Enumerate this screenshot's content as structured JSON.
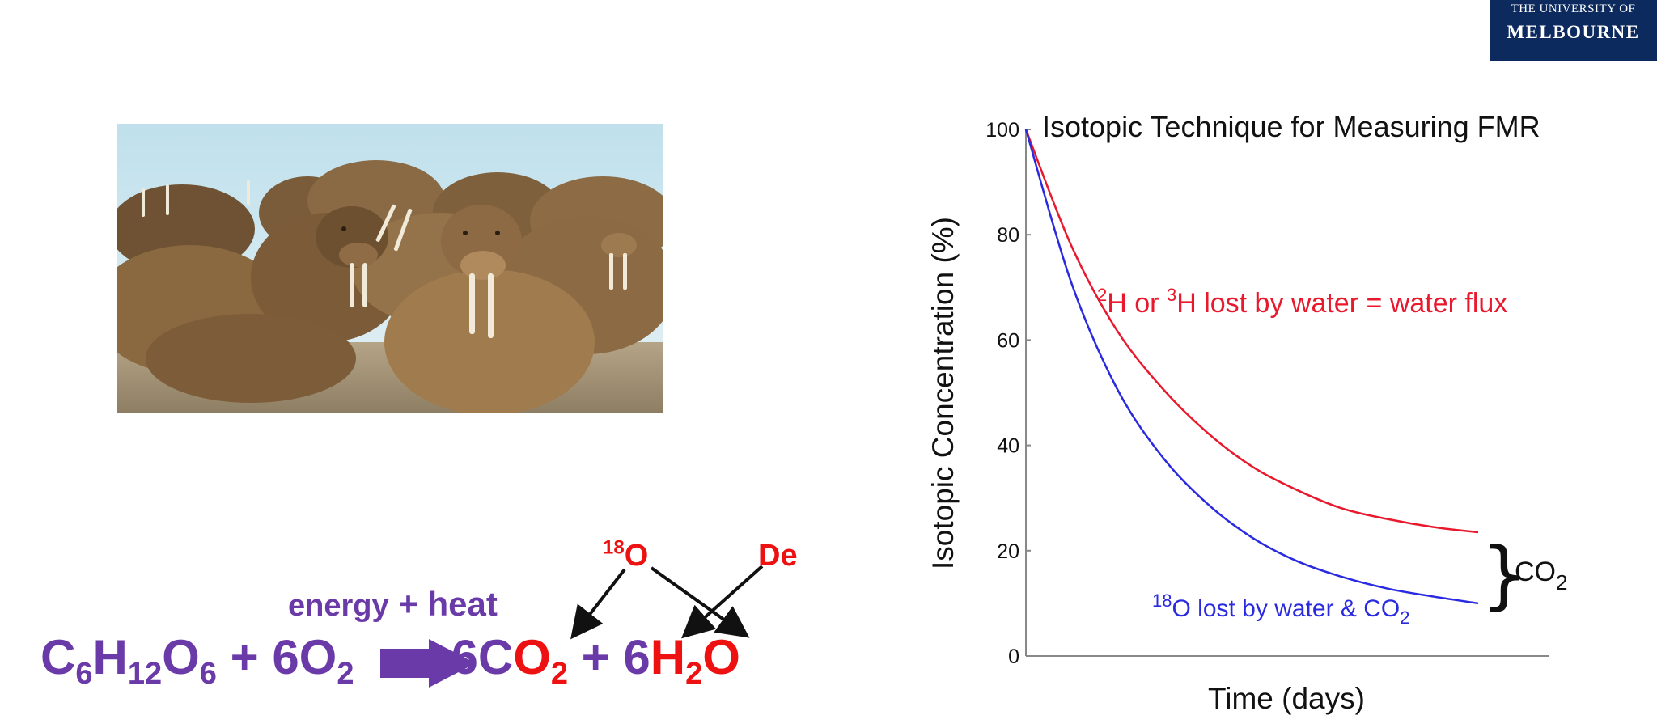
{
  "logo": {
    "line1": "THE UNIVERSITY OF",
    "line2": "MELBOURNE"
  },
  "photo": {
    "description_icon": "walrus-photo"
  },
  "equation": {
    "reactant1": {
      "c": "C",
      "c_sub": "6",
      "h": "H",
      "h_sub": "12",
      "o": "O",
      "o_sub": "6"
    },
    "plus1": " + ",
    "reactant2": {
      "coef": "6O",
      "sub": "2"
    },
    "product1": {
      "coef": "6C",
      "o": "O",
      "sub": "2"
    },
    "plus2": " + ",
    "product2": {
      "coef": "6",
      "h": "H",
      "sub": "2",
      "o": "O"
    },
    "above_arrow": {
      "energy": "energy",
      "plus": " + ",
      "heat": "heat"
    },
    "label_18": {
      "sup": "18",
      "o": "O"
    },
    "label_de": "De",
    "colors": {
      "purple": "#6a3aa8",
      "red": "#ee1111"
    }
  },
  "chart_data": {
    "type": "line",
    "title": "Isotopic Technique for Measuring FMR",
    "xlabel": "Time (days)",
    "ylabel": "Isotopic Concentration (%)",
    "ylim": [
      0,
      100
    ],
    "yticks": [
      "0",
      "20",
      "40",
      "60",
      "80",
      "100"
    ],
    "grid": false,
    "series": [
      {
        "label_sup1": "2",
        "label_part1": "H or ",
        "label_sup2": "3",
        "label_part2": "H lost by water = water flux",
        "color": "#e8182d",
        "x": [
          0,
          0.1,
          0.2,
          0.3,
          0.4,
          0.5,
          0.6,
          0.7,
          0.8,
          0.9,
          1.0
        ],
        "values": [
          100,
          78,
          62,
          51,
          42.5,
          36,
          31.5,
          28,
          26,
          24.5,
          23.5
        ]
      },
      {
        "label_sup": "18",
        "label_part1": "O lost by water & CO",
        "label_sub": "2",
        "color": "#2a2ae0",
        "x": [
          0,
          0.1,
          0.2,
          0.3,
          0.4,
          0.5,
          0.6,
          0.7,
          0.8,
          0.9,
          1.0
        ],
        "values": [
          100,
          71,
          51,
          38,
          29,
          22.5,
          18,
          15,
          12.8,
          11.3,
          10
        ]
      }
    ],
    "bracket_label": {
      "main": "CO",
      "sub": "2"
    }
  }
}
